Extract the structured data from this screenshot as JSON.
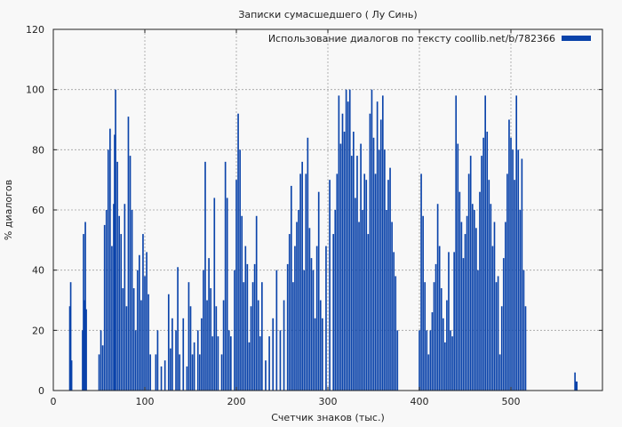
{
  "chart_data": {
    "type": "bar",
    "title": "Записки сумасшедшего ( Лу Синь)",
    "xlabel": "Счетчик знаков (тыс.)",
    "ylabel": "% диалогов",
    "xlim": [
      0,
      600
    ],
    "ylim": [
      0,
      120
    ],
    "xticks": [
      0,
      100,
      200,
      300,
      400,
      500
    ],
    "yticks": [
      0,
      20,
      40,
      60,
      80,
      100,
      120
    ],
    "grid": true,
    "legend_position": "top-right",
    "series": [
      {
        "name": "Использование диалогов по тексту coollib.net/b/782366",
        "color": "#0a43aa",
        "points": [
          [
            18,
            28
          ],
          [
            19,
            36
          ],
          [
            20,
            10
          ],
          [
            32,
            20
          ],
          [
            33,
            52
          ],
          [
            34,
            30
          ],
          [
            35,
            56
          ],
          [
            36,
            27
          ],
          [
            50,
            12
          ],
          [
            52,
            20
          ],
          [
            54,
            15
          ],
          [
            56,
            55
          ],
          [
            58,
            60
          ],
          [
            60,
            80
          ],
          [
            62,
            87
          ],
          [
            64,
            48
          ],
          [
            66,
            62
          ],
          [
            67,
            85
          ],
          [
            68,
            100
          ],
          [
            70,
            76
          ],
          [
            72,
            58
          ],
          [
            74,
            52
          ],
          [
            76,
            34
          ],
          [
            78,
            62
          ],
          [
            80,
            28
          ],
          [
            82,
            91
          ],
          [
            84,
            78
          ],
          [
            86,
            60
          ],
          [
            88,
            34
          ],
          [
            90,
            20
          ],
          [
            92,
            40
          ],
          [
            94,
            45
          ],
          [
            96,
            30
          ],
          [
            98,
            52
          ],
          [
            100,
            38
          ],
          [
            102,
            46
          ],
          [
            104,
            32
          ],
          [
            106,
            12
          ],
          [
            112,
            12
          ],
          [
            114,
            20
          ],
          [
            118,
            8
          ],
          [
            122,
            10
          ],
          [
            126,
            32
          ],
          [
            128,
            14
          ],
          [
            130,
            24
          ],
          [
            134,
            20
          ],
          [
            136,
            41
          ],
          [
            138,
            12
          ],
          [
            142,
            24
          ],
          [
            146,
            8
          ],
          [
            148,
            36
          ],
          [
            150,
            28
          ],
          [
            152,
            12
          ],
          [
            154,
            16
          ],
          [
            158,
            20
          ],
          [
            160,
            12
          ],
          [
            162,
            24
          ],
          [
            164,
            40
          ],
          [
            166,
            76
          ],
          [
            168,
            30
          ],
          [
            170,
            44
          ],
          [
            172,
            34
          ],
          [
            174,
            18
          ],
          [
            176,
            64
          ],
          [
            178,
            28
          ],
          [
            180,
            18
          ],
          [
            184,
            12
          ],
          [
            186,
            30
          ],
          [
            188,
            76
          ],
          [
            190,
            64
          ],
          [
            192,
            20
          ],
          [
            194,
            18
          ],
          [
            198,
            40
          ],
          [
            200,
            70
          ],
          [
            202,
            92
          ],
          [
            204,
            80
          ],
          [
            206,
            58
          ],
          [
            208,
            36
          ],
          [
            210,
            48
          ],
          [
            212,
            42
          ],
          [
            214,
            16
          ],
          [
            216,
            28
          ],
          [
            218,
            36
          ],
          [
            220,
            42
          ],
          [
            222,
            58
          ],
          [
            224,
            30
          ],
          [
            226,
            18
          ],
          [
            228,
            36
          ],
          [
            232,
            10
          ],
          [
            236,
            18
          ],
          [
            240,
            24
          ],
          [
            244,
            40
          ],
          [
            248,
            20
          ],
          [
            252,
            30
          ],
          [
            256,
            42
          ],
          [
            258,
            52
          ],
          [
            260,
            68
          ],
          [
            262,
            36
          ],
          [
            264,
            48
          ],
          [
            266,
            56
          ],
          [
            268,
            60
          ],
          [
            270,
            72
          ],
          [
            272,
            76
          ],
          [
            274,
            40
          ],
          [
            276,
            72
          ],
          [
            278,
            84
          ],
          [
            280,
            54
          ],
          [
            282,
            44
          ],
          [
            284,
            40
          ],
          [
            286,
            24
          ],
          [
            288,
            48
          ],
          [
            290,
            66
          ],
          [
            292,
            30
          ],
          [
            294,
            24
          ],
          [
            298,
            48
          ],
          [
            302,
            70
          ],
          [
            306,
            52
          ],
          [
            308,
            60
          ],
          [
            310,
            72
          ],
          [
            312,
            98
          ],
          [
            314,
            82
          ],
          [
            316,
            92
          ],
          [
            318,
            86
          ],
          [
            320,
            100
          ],
          [
            322,
            96
          ],
          [
            324,
            100
          ],
          [
            326,
            78
          ],
          [
            328,
            86
          ],
          [
            330,
            64
          ],
          [
            332,
            78
          ],
          [
            334,
            56
          ],
          [
            336,
            82
          ],
          [
            338,
            60
          ],
          [
            340,
            72
          ],
          [
            342,
            70
          ],
          [
            344,
            52
          ],
          [
            346,
            92
          ],
          [
            348,
            100
          ],
          [
            350,
            84
          ],
          [
            352,
            72
          ],
          [
            354,
            96
          ],
          [
            356,
            80
          ],
          [
            358,
            90
          ],
          [
            360,
            98
          ],
          [
            362,
            80
          ],
          [
            364,
            60
          ],
          [
            366,
            70
          ],
          [
            368,
            74
          ],
          [
            370,
            56
          ],
          [
            372,
            46
          ],
          [
            374,
            38
          ],
          [
            376,
            20
          ],
          [
            400,
            20
          ],
          [
            402,
            72
          ],
          [
            404,
            58
          ],
          [
            406,
            36
          ],
          [
            408,
            20
          ],
          [
            410,
            12
          ],
          [
            412,
            20
          ],
          [
            414,
            26
          ],
          [
            416,
            36
          ],
          [
            418,
            42
          ],
          [
            420,
            62
          ],
          [
            422,
            48
          ],
          [
            424,
            34
          ],
          [
            426,
            24
          ],
          [
            428,
            16
          ],
          [
            430,
            30
          ],
          [
            432,
            46
          ],
          [
            434,
            20
          ],
          [
            436,
            18
          ],
          [
            438,
            46
          ],
          [
            440,
            98
          ],
          [
            442,
            82
          ],
          [
            444,
            66
          ],
          [
            446,
            56
          ],
          [
            448,
            44
          ],
          [
            450,
            52
          ],
          [
            452,
            58
          ],
          [
            454,
            72
          ],
          [
            456,
            78
          ],
          [
            458,
            62
          ],
          [
            460,
            60
          ],
          [
            462,
            54
          ],
          [
            464,
            40
          ],
          [
            466,
            66
          ],
          [
            468,
            78
          ],
          [
            470,
            84
          ],
          [
            472,
            98
          ],
          [
            474,
            86
          ],
          [
            476,
            70
          ],
          [
            478,
            62
          ],
          [
            480,
            48
          ],
          [
            482,
            56
          ],
          [
            484,
            36
          ],
          [
            486,
            38
          ],
          [
            488,
            12
          ],
          [
            490,
            28
          ],
          [
            492,
            44
          ],
          [
            494,
            56
          ],
          [
            496,
            72
          ],
          [
            498,
            90
          ],
          [
            500,
            84
          ],
          [
            502,
            80
          ],
          [
            504,
            70
          ],
          [
            506,
            98
          ],
          [
            508,
            80
          ],
          [
            510,
            60
          ],
          [
            512,
            77
          ],
          [
            514,
            40
          ],
          [
            516,
            28
          ],
          [
            570,
            6
          ],
          [
            571,
            3
          ],
          [
            572,
            3
          ]
        ]
      }
    ]
  }
}
